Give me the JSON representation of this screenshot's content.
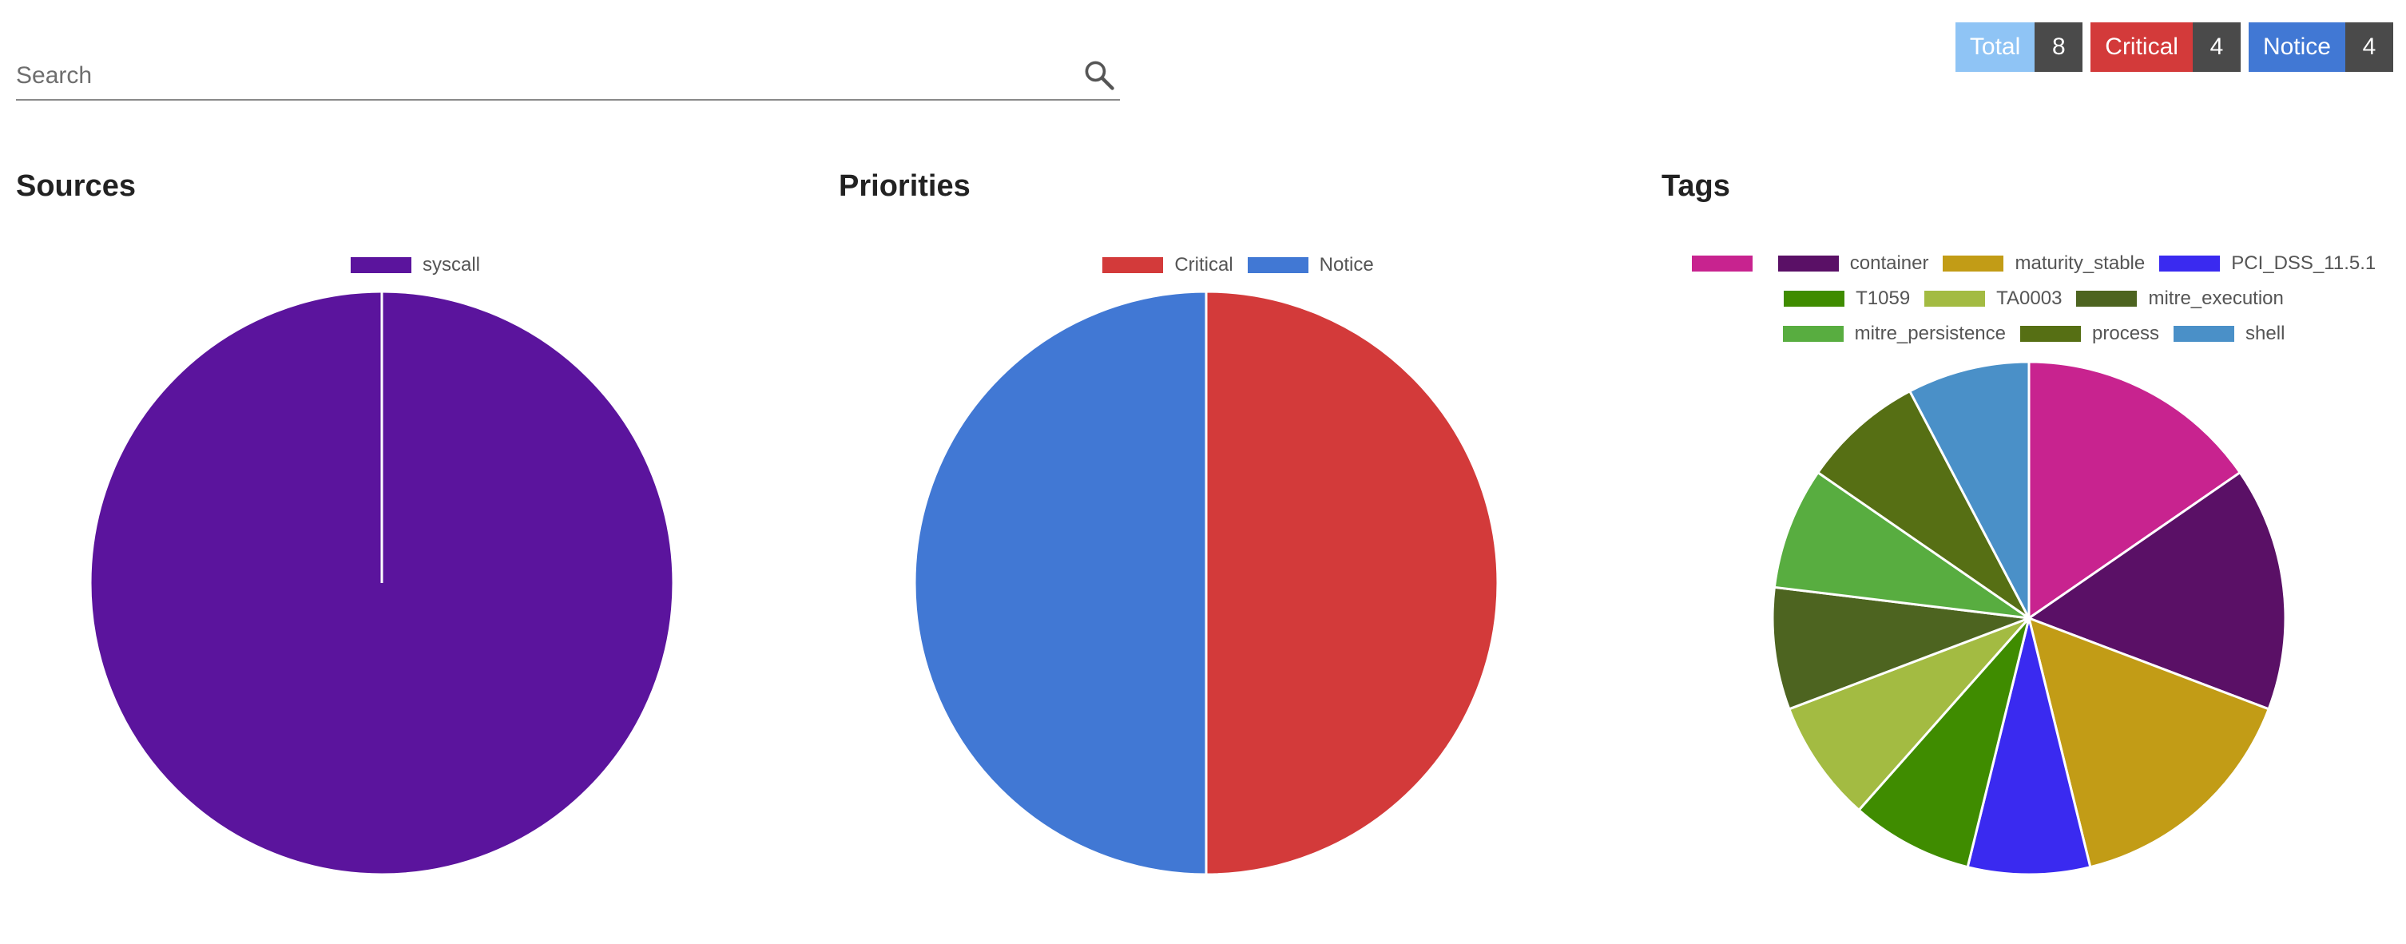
{
  "search": {
    "placeholder": "Search",
    "value": ""
  },
  "counters": [
    {
      "label": "Total",
      "value": "8",
      "color": "#8fc4f5"
    },
    {
      "label": "Critical",
      "value": "4",
      "color": "#d33a3a"
    },
    {
      "label": "Notice",
      "value": "4",
      "color": "#4178d4"
    }
  ],
  "panels": {
    "sources": {
      "title": "Sources"
    },
    "priorities": {
      "title": "Priorities"
    },
    "tags": {
      "title": "Tags"
    }
  },
  "chart_data": [
    {
      "type": "pie",
      "title": "Sources",
      "categories": [
        "syscall"
      ],
      "values": [
        8
      ],
      "colors": [
        "#5b149d"
      ],
      "legend": "top"
    },
    {
      "type": "pie",
      "title": "Priorities",
      "categories": [
        "Critical",
        "Notice"
      ],
      "values": [
        4,
        4
      ],
      "colors": [
        "#d33a3a",
        "#4178d4"
      ],
      "legend": "top"
    },
    {
      "type": "pie",
      "title": "Tags",
      "categories": [
        "",
        "container",
        "maturity_stable",
        "PCI_DSS_11.5.1",
        "T1059",
        "TA0003",
        "mitre_execution",
        "mitre_persistence",
        "process",
        "shell"
      ],
      "values": [
        2,
        2,
        2,
        1,
        1,
        1,
        1,
        1,
        1,
        1
      ],
      "colors": [
        "#c8238f",
        "#5a1066",
        "#c29c16",
        "#3a2af0",
        "#3f8c00",
        "#a3bb42",
        "#4d6420",
        "#58ad40",
        "#566f14",
        "#4a90c8"
      ],
      "legend": "top"
    }
  ]
}
